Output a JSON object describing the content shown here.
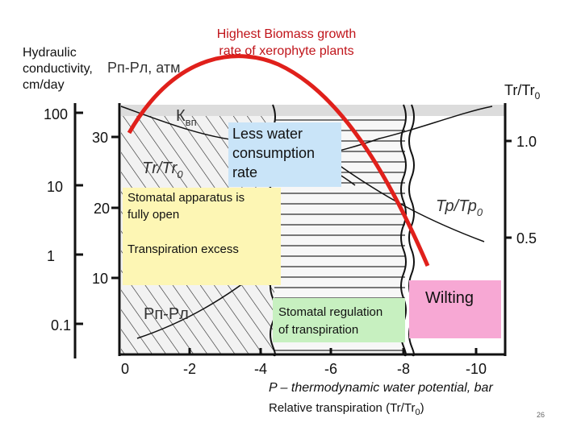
{
  "header": {
    "left_label": [
      "Hydraulic",
      "conductivity,",
      "cm/day"
    ],
    "top_label": [
      "Highest Biomass growth",
      "rate of xerophyte plants"
    ],
    "unit_label": "Рп-Рл, атм",
    "right_label": {
      "text": "Tr/Tr",
      "sub": "0"
    }
  },
  "axes": {
    "left_ticks": [
      "100",
      "10",
      "1",
      "0.1"
    ],
    "inner_ticks": [
      "30",
      "20",
      "10"
    ],
    "right_ticks": [
      "1.0",
      "0.5"
    ],
    "x_ticks": [
      "0",
      "-2",
      "-4",
      "-6",
      "-8",
      "-10"
    ]
  },
  "curve_labels": {
    "k": {
      "text": "К",
      "sub": "вп"
    },
    "tr_left": {
      "text": "Тr/Тr",
      "sub": "0"
    },
    "tr_right": {
      "text": "Тр/Тр",
      "sub": "0"
    },
    "pressure": "Рп-Рл"
  },
  "boxes": {
    "less_water": [
      "Less water",
      "consumption",
      "rate"
    ],
    "open": [
      "Stomatal apparatus is",
      "fully open"
    ],
    "excess": "Transpiration excess",
    "regulation": [
      "Stomatal regulation",
      "of transpiration"
    ],
    "wilting": "Wilting"
  },
  "footer": {
    "x_title": "P – thermodynamic water potential, bar",
    "relative": {
      "text": "Relative transpiration (Tr/Tr",
      "sub": "0",
      "end": ")"
    },
    "page": "26"
  }
}
